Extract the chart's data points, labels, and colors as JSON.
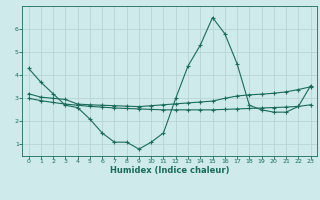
{
  "xlabel": "Humidex (Indice chaleur)",
  "bg_color": "#ceeaea",
  "line_color": "#1a6b5a",
  "grid_color": "#b8d4d4",
  "xlim": [
    -0.5,
    23.5
  ],
  "ylim": [
    0.5,
    7.0
  ],
  "yticks": [
    1,
    2,
    3,
    4,
    5,
    6
  ],
  "xticks": [
    0,
    1,
    2,
    3,
    4,
    5,
    6,
    7,
    8,
    9,
    10,
    11,
    12,
    13,
    14,
    15,
    16,
    17,
    18,
    19,
    20,
    21,
    22,
    23
  ],
  "curve1_x": [
    0,
    1,
    2,
    3,
    4,
    5,
    6,
    7,
    8,
    9,
    10,
    11,
    12,
    13,
    14,
    15,
    16,
    17,
    18,
    19,
    20,
    21,
    22,
    23
  ],
  "curve1_y": [
    4.3,
    3.7,
    3.2,
    2.7,
    2.6,
    2.1,
    1.5,
    1.1,
    1.1,
    0.8,
    1.1,
    1.5,
    3.0,
    4.4,
    5.3,
    6.5,
    5.8,
    4.5,
    2.7,
    2.5,
    2.4,
    2.4,
    2.65,
    3.55
  ],
  "curve2_x": [
    0,
    1,
    2,
    3,
    4,
    5,
    6,
    7,
    8,
    9,
    10,
    11,
    12,
    13,
    14,
    15,
    16,
    17,
    18,
    19,
    20,
    21,
    22,
    23
  ],
  "curve2_y": [
    3.2,
    3.05,
    3.0,
    2.95,
    2.75,
    2.72,
    2.7,
    2.68,
    2.66,
    2.64,
    2.68,
    2.72,
    2.76,
    2.8,
    2.84,
    2.88,
    3.0,
    3.1,
    3.15,
    3.18,
    3.22,
    3.28,
    3.38,
    3.5
  ],
  "curve3_x": [
    0,
    1,
    2,
    3,
    4,
    5,
    6,
    7,
    8,
    9,
    10,
    11,
    12,
    13,
    14,
    15,
    16,
    17,
    18,
    19,
    20,
    21,
    22,
    23
  ],
  "curve3_y": [
    3.0,
    2.9,
    2.82,
    2.75,
    2.7,
    2.65,
    2.62,
    2.58,
    2.56,
    2.54,
    2.52,
    2.5,
    2.5,
    2.5,
    2.5,
    2.5,
    2.52,
    2.54,
    2.56,
    2.58,
    2.6,
    2.62,
    2.65,
    2.72
  ]
}
